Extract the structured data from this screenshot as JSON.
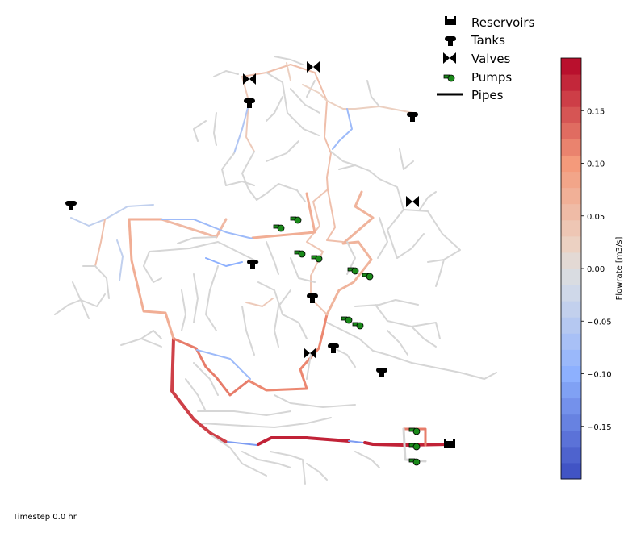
{
  "legend": {
    "items": [
      {
        "label": "Reservoirs",
        "icon": "reservoir-icon"
      },
      {
        "label": "Tanks",
        "icon": "tank-icon"
      },
      {
        "label": "Valves",
        "icon": "valve-icon"
      },
      {
        "label": "Pumps",
        "icon": "pump-icon"
      },
      {
        "label": "Pipes",
        "icon": "pipe-icon"
      }
    ]
  },
  "colorbar": {
    "title": "Flowrate [m3/s]",
    "range": [
      -0.2,
      0.2
    ],
    "levels": 26,
    "ticks": [
      {
        "value": 0.15,
        "label": "0.15"
      },
      {
        "value": 0.1,
        "label": "0.10"
      },
      {
        "value": 0.05,
        "label": "0.05"
      },
      {
        "value": 0.0,
        "label": "0.00"
      },
      {
        "value": -0.05,
        "label": "−0.05"
      },
      {
        "value": -0.1,
        "label": "−0.10"
      },
      {
        "value": -0.15,
        "label": "−0.15"
      }
    ],
    "colormap": "coolwarm"
  },
  "timestep": "Timestep 0.0 hr"
}
